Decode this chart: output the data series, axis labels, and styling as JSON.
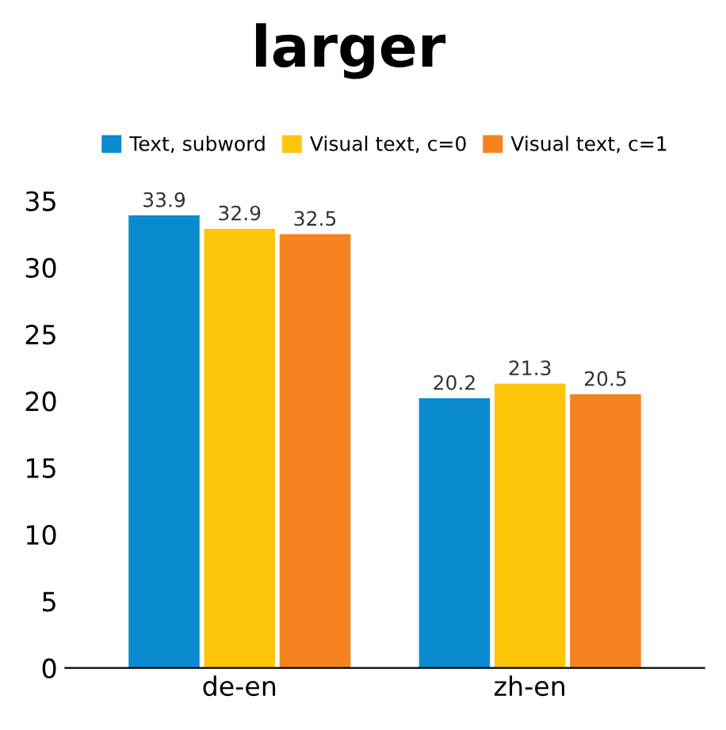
{
  "chart_data": {
    "type": "bar",
    "title": "larger",
    "categories": [
      "de-en",
      "zh-en"
    ],
    "series": [
      {
        "name": "Text, subword",
        "color": "#0a8bd0",
        "values": [
          33.9,
          20.2
        ]
      },
      {
        "name": "Visual text, c=0",
        "color": "#fec60b",
        "values": [
          32.9,
          21.3
        ]
      },
      {
        "name": "Visual text, c=1",
        "color": "#f5821f",
        "values": [
          32.5,
          20.5
        ]
      }
    ],
    "ylim": [
      0,
      35
    ],
    "yticks": [
      0,
      5,
      10,
      15,
      20,
      25,
      30,
      35
    ],
    "data_labels": true,
    "legend": "top",
    "grid": false
  }
}
